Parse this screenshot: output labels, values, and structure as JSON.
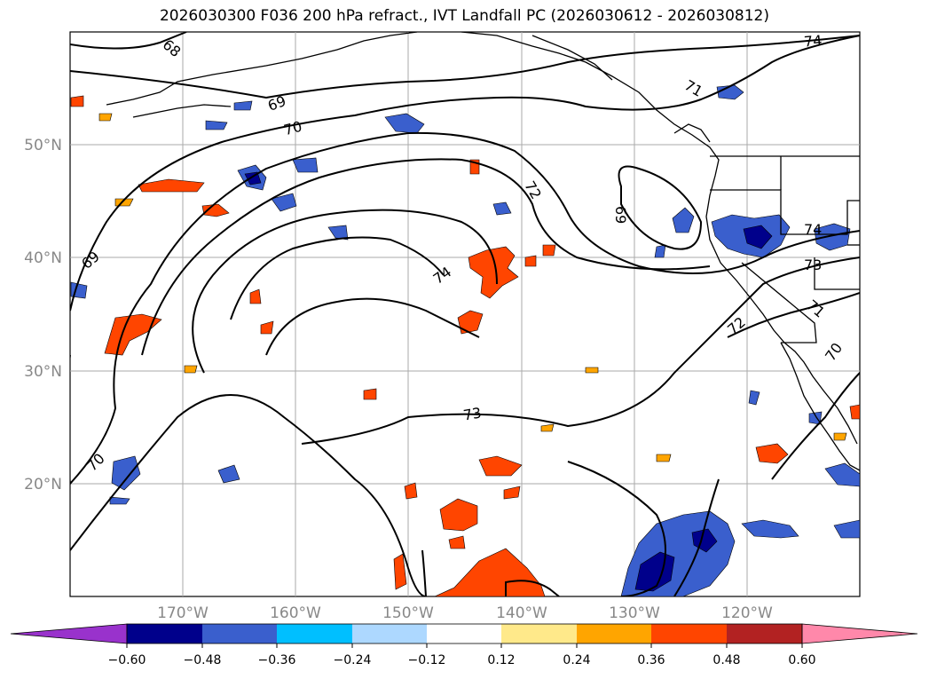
{
  "title": "2026030300 F036 200 hPa refract., IVT Landfall PC (2026030612 - 2026030812)",
  "map": {
    "lat_labels": [
      "50°N",
      "40°N",
      "30°N",
      "20°N"
    ],
    "lon_labels": [
      "170°W",
      "160°W",
      "150°W",
      "140°W",
      "130°W",
      "120°W"
    ],
    "contour_labels": [
      {
        "text": "68"
      },
      {
        "text": "69"
      },
      {
        "text": "70"
      },
      {
        "text": "72"
      },
      {
        "text": "69"
      },
      {
        "text": "71"
      },
      {
        "text": "74"
      },
      {
        "text": "69"
      },
      {
        "text": "74"
      },
      {
        "text": "74"
      },
      {
        "text": "73"
      },
      {
        "text": "72"
      },
      {
        "text": "71"
      },
      {
        "text": "70"
      },
      {
        "text": "73"
      },
      {
        "text": "70"
      }
    ]
  },
  "colorbar": {
    "ticks": [
      "−0.60",
      "−0.48",
      "−0.36",
      "−0.24",
      "−0.12",
      "0.12",
      "0.24",
      "0.36",
      "0.48",
      "0.60"
    ],
    "colors": [
      "#9932cc",
      "#00008b",
      "#3a5fcd",
      "#00bfff",
      "#add8ff",
      "#ffffff",
      "#ffe98a",
      "#ffa500",
      "#ff4500",
      "#b22222",
      "#ff88aa"
    ]
  }
}
